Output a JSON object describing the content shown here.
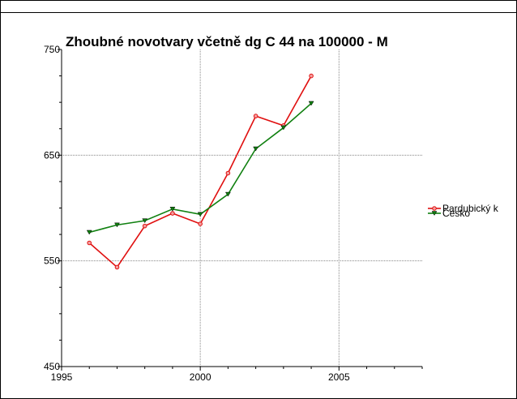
{
  "chart_data": {
    "type": "line",
    "title": "Zhoubné novotvary včetně dg C 44 na 100000 - M",
    "x": [
      1996,
      1997,
      1998,
      1999,
      2000,
      2001,
      2002,
      2003,
      2004
    ],
    "series": [
      {
        "name": "Pardubický k",
        "color": "#e01010",
        "marker": "circle",
        "values": [
          567,
          544,
          583,
          595,
          585,
          633,
          687,
          678,
          725
        ]
      },
      {
        "name": "Česko",
        "color": "#108010",
        "marker": "triangle-down",
        "values": [
          577,
          584,
          588,
          599,
          594,
          613,
          656,
          676,
          699
        ]
      }
    ],
    "xlim": [
      1995,
      2008
    ],
    "xticks": [
      1995,
      2000,
      2005
    ],
    "xticks_minor": [
      1996,
      1997,
      1998,
      1999,
      2001,
      2002,
      2003,
      2004,
      2006,
      2007,
      2008
    ],
    "ylim": [
      450,
      750
    ],
    "yticks": [
      450,
      550,
      650,
      750
    ],
    "yticks_minor": [
      475,
      500,
      525,
      575,
      600,
      625,
      675,
      700,
      725
    ],
    "grid": true,
    "legend": "right"
  }
}
